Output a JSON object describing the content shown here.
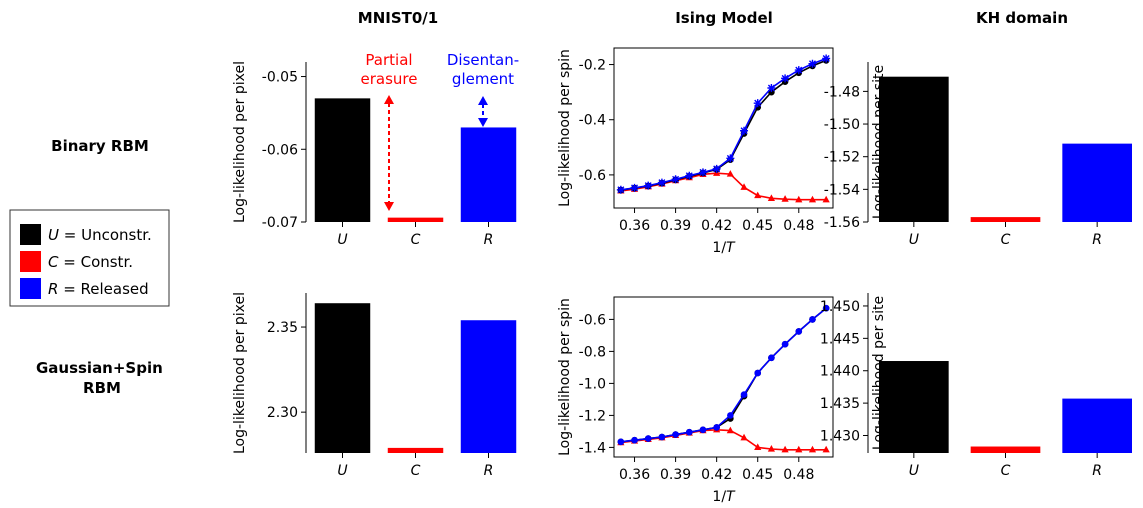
{
  "column_titles": [
    "MNIST0/1",
    "Ising Model",
    "KH domain"
  ],
  "row_titles": [
    "Binary RBM",
    "Gaussian+Spin\nRBM"
  ],
  "legend": [
    {
      "key": "U",
      "label": " = Unconstr.",
      "color": "#000000"
    },
    {
      "key": "C",
      "label": " = Constr.",
      "color": "#ff0000"
    },
    {
      "key": "R",
      "label": " = Released",
      "color": "#0000ff"
    }
  ],
  "annotations": {
    "partial_erasure": {
      "lines": [
        "Partial",
        "erasure"
      ],
      "color": "#ff0000"
    },
    "disentanglement": {
      "lines": [
        "Disentan-",
        "glement"
      ],
      "color": "#0000ff"
    }
  },
  "chart_data": [
    {
      "id": "mnist-binary",
      "type": "bar",
      "categories": [
        "U",
        "C",
        "R"
      ],
      "values": [
        -0.053,
        -0.0694,
        -0.057
      ],
      "colors": [
        "#000000",
        "#ff0000",
        "#0000ff"
      ],
      "ylabel": "Log-likelihood per pixel",
      "ylim": [
        -0.07,
        -0.048
      ],
      "yticks": [
        -0.05,
        -0.06,
        -0.07
      ],
      "ytick_labels": [
        "-0.05",
        "-0.06",
        "-0.07"
      ]
    },
    {
      "id": "ising-binary",
      "type": "line",
      "xlabel": "1/T",
      "ylabel": "Log-likelihood per spin",
      "xlim": [
        0.345,
        0.505
      ],
      "ylim": [
        -0.72,
        -0.14
      ],
      "xticks": [
        0.36,
        0.39,
        0.42,
        0.45,
        0.48
      ],
      "xtick_labels": [
        "0.36",
        "0.39",
        "0.42",
        "0.45",
        "0.48"
      ],
      "yticks": [
        -0.2,
        -0.4,
        -0.6
      ],
      "ytick_labels": [
        "-0.2",
        "-0.4",
        "-0.6"
      ],
      "x": [
        0.35,
        0.36,
        0.37,
        0.38,
        0.39,
        0.4,
        0.41,
        0.42,
        0.43,
        0.44,
        0.45,
        0.46,
        0.47,
        0.48,
        0.49,
        0.5
      ],
      "series": [
        {
          "color": "#ff0000",
          "marker": "triangle",
          "values": [
            -0.658,
            -0.652,
            -0.643,
            -0.633,
            -0.621,
            -0.61,
            -0.598,
            -0.594,
            -0.597,
            -0.645,
            -0.675,
            -0.685,
            -0.688,
            -0.69,
            -0.69,
            -0.69
          ]
        },
        {
          "color": "#000000",
          "marker": "circle",
          "values": [
            -0.655,
            -0.648,
            -0.64,
            -0.63,
            -0.618,
            -0.605,
            -0.593,
            -0.58,
            -0.545,
            -0.45,
            -0.355,
            -0.3,
            -0.262,
            -0.23,
            -0.205,
            -0.185
          ]
        },
        {
          "color": "#0000ff",
          "marker": "star",
          "values": [
            -0.654,
            -0.647,
            -0.639,
            -0.628,
            -0.616,
            -0.603,
            -0.591,
            -0.578,
            -0.54,
            -0.44,
            -0.34,
            -0.285,
            -0.25,
            -0.22,
            -0.197,
            -0.178
          ]
        }
      ]
    },
    {
      "id": "kh-binary",
      "type": "bar",
      "categories": [
        "U",
        "C",
        "R"
      ],
      "values": [
        -1.471,
        -1.557,
        -1.512
      ],
      "colors": [
        "#000000",
        "#ff0000",
        "#0000ff"
      ],
      "ylabel": "Log-likelihood per site",
      "ylim": [
        -1.56,
        -1.462
      ],
      "yticks": [
        -1.48,
        -1.5,
        -1.52,
        -1.54,
        -1.56
      ],
      "ytick_labels": [
        "-1.48",
        "-1.50",
        "-1.52",
        "-1.54",
        "-1.56"
      ]
    },
    {
      "id": "mnist-gaussian",
      "type": "bar",
      "categories": [
        "U",
        "C",
        "R"
      ],
      "values": [
        2.364,
        2.279,
        2.354
      ],
      "colors": [
        "#000000",
        "#ff0000",
        "#0000ff"
      ],
      "ylabel": "Log-likelihood per pixel",
      "ylim": [
        2.276,
        2.37
      ],
      "yticks": [
        2.35,
        2.3
      ],
      "ytick_labels": [
        "2.35",
        "2.30"
      ]
    },
    {
      "id": "ising-gaussian",
      "type": "line",
      "xlabel": "1/T",
      "ylabel": "Log-likelihood per spin",
      "xlim": [
        0.345,
        0.505
      ],
      "ylim": [
        -1.46,
        -0.46
      ],
      "xticks": [
        0.36,
        0.39,
        0.42,
        0.45,
        0.48
      ],
      "xtick_labels": [
        "0.36",
        "0.39",
        "0.42",
        "0.45",
        "0.48"
      ],
      "yticks": [
        -0.6,
        -0.8,
        -1.0,
        -1.2,
        -1.4
      ],
      "ytick_labels": [
        "-0.6",
        "-0.8",
        "-1.0",
        "-1.2",
        "-1.4"
      ],
      "x": [
        0.35,
        0.36,
        0.37,
        0.38,
        0.39,
        0.4,
        0.41,
        0.42,
        0.43,
        0.44,
        0.45,
        0.46,
        0.47,
        0.48,
        0.49,
        0.5
      ],
      "series": [
        {
          "color": "#ff0000",
          "marker": "triangle",
          "values": [
            -1.37,
            -1.36,
            -1.35,
            -1.34,
            -1.325,
            -1.31,
            -1.295,
            -1.29,
            -1.295,
            -1.34,
            -1.4,
            -1.41,
            -1.415,
            -1.415,
            -1.415,
            -1.415
          ]
        },
        {
          "color": "#000000",
          "marker": "circle",
          "values": [
            -1.365,
            -1.355,
            -1.345,
            -1.335,
            -1.32,
            -1.305,
            -1.29,
            -1.275,
            -1.22,
            -1.08,
            -0.935,
            -0.84,
            -0.755,
            -0.675,
            -0.6,
            -0.53
          ]
        },
        {
          "color": "#0000ff",
          "marker": "circle",
          "values": [
            -1.365,
            -1.355,
            -1.345,
            -1.335,
            -1.32,
            -1.305,
            -1.29,
            -1.275,
            -1.2,
            -1.07,
            -0.935,
            -0.84,
            -0.755,
            -0.675,
            -0.6,
            -0.53
          ]
        }
      ]
    },
    {
      "id": "kh-gaussian",
      "type": "bar",
      "categories": [
        "U",
        "C",
        "R"
      ],
      "values": [
        1.4415,
        1.4283,
        1.4357
      ],
      "colors": [
        "#000000",
        "#ff0000",
        "#0000ff"
      ],
      "ylabel": "Log-likelihood per site",
      "ylim": [
        1.4273,
        1.452
      ],
      "yticks": [
        1.45,
        1.445,
        1.44,
        1.435,
        1.43
      ],
      "ytick_labels": [
        "1.450",
        "1.445",
        "1.440",
        "1.435",
        "1.430"
      ]
    }
  ]
}
